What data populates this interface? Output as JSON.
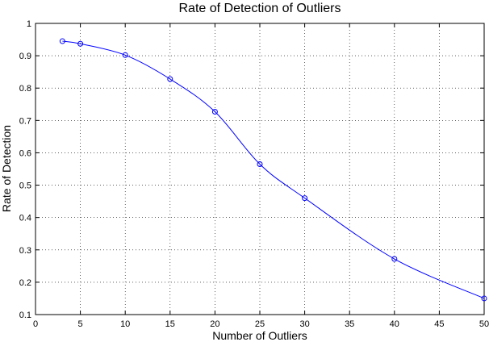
{
  "chart_data": {
    "type": "line",
    "title": "Rate of Detection of Outliers",
    "xlabel": "Number of Outliers",
    "ylabel": "Rate of Detection",
    "xlim": [
      0,
      50
    ],
    "ylim": [
      0.1,
      1
    ],
    "xticks": [
      0,
      5,
      10,
      15,
      20,
      25,
      30,
      35,
      40,
      45,
      50
    ],
    "yticks": [
      0.1,
      0.2,
      0.3,
      0.4,
      0.5,
      0.6,
      0.7,
      0.8,
      0.9,
      1
    ],
    "ytick_labels": [
      "0.1",
      "0.2",
      "0.3",
      "0.4",
      "0.5",
      "0.6",
      "0.7",
      "0.8",
      "0.9",
      "1"
    ],
    "grid": true,
    "marker": "circle",
    "line_color": "#0000ff",
    "series": [
      {
        "x": [
          3,
          5,
          10,
          15,
          20,
          25,
          30,
          40,
          50
        ],
        "values": [
          0.945,
          0.937,
          0.902,
          0.828,
          0.727,
          0.565,
          0.46,
          0.272,
          0.15
        ]
      }
    ]
  }
}
